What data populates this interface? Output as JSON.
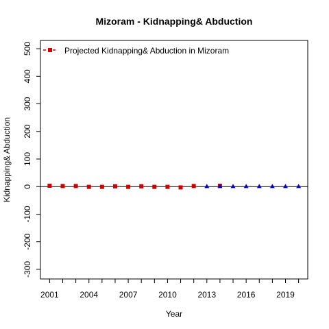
{
  "chart_data": {
    "type": "scatter",
    "title": "Mizoram  -  Kidnapping& Abduction",
    "xlabel": "Year",
    "ylabel": "Kidnapping& Abduction",
    "xlim": [
      2000.3,
      2020.7
    ],
    "ylim": [
      -335,
      530
    ],
    "x_ticks": [
      2001,
      2004,
      2007,
      2010,
      2013,
      2016,
      2019
    ],
    "y_ticks": [
      -300,
      -200,
      -100,
      0,
      100,
      200,
      300,
      400,
      500
    ],
    "reference_line_y": 0,
    "legend": {
      "position": "top-left",
      "entries": [
        {
          "label": "Projected  Kidnapping& Abduction  in  Mizoram",
          "color": "#cc0000",
          "marker": "square",
          "line": "dashed"
        }
      ]
    },
    "series": [
      {
        "color": "#cc0000",
        "marker": "square",
        "x": [
          2001,
          2002,
          2003,
          2004,
          2005,
          2006,
          2007,
          2008,
          2009,
          2010,
          2011,
          2012,
          2014
        ],
        "y": [
          3,
          2,
          2,
          -1,
          -1,
          1,
          -1,
          1,
          -1,
          -1,
          -3,
          2,
          3
        ]
      },
      {
        "color": "#0000cc",
        "marker": "triangle",
        "x": [
          2013,
          2014,
          2015,
          2016,
          2017,
          2018,
          2019,
          2020
        ],
        "y": [
          1,
          1,
          1,
          1,
          1,
          1,
          1,
          1
        ]
      }
    ]
  }
}
